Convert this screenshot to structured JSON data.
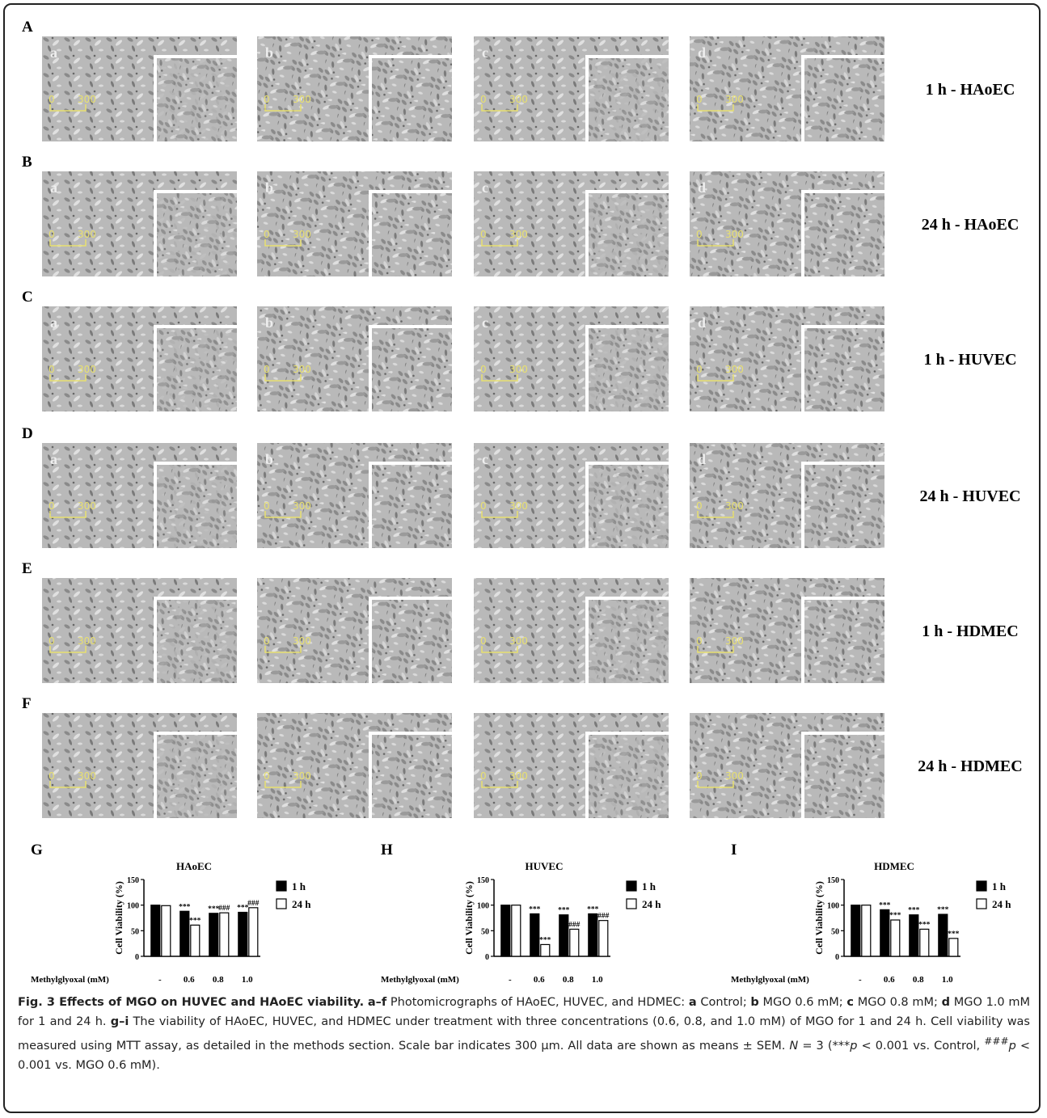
{
  "figure": {
    "rows": [
      {
        "label": "A",
        "panels": [
          "a",
          "b",
          "c",
          "d"
        ],
        "title": "1 h - HAoEC"
      },
      {
        "label": "B",
        "panels": [
          "a",
          "b",
          "c",
          "d"
        ],
        "title": "24 h - HAoEC"
      },
      {
        "label": "C",
        "panels": [
          "a",
          "b",
          "c",
          "d"
        ],
        "title": "1 h - HUVEC"
      },
      {
        "label": "D",
        "panels": [
          "a",
          "b",
          "c",
          "d"
        ],
        "title": "24 h - HUVEC"
      },
      {
        "label": "E",
        "title": "1 h - HDMEC"
      },
      {
        "label": "F",
        "title": "24 h - HDMEC"
      }
    ],
    "scale": [
      "0",
      "300"
    ]
  },
  "chart_data": [
    {
      "type": "bar",
      "panel": "G",
      "title": "HAoEC",
      "ylabel": "Cell Viability (%)",
      "xlabel": "Methylglyoxal (mM)",
      "categories": [
        "-",
        "0.6",
        "0.8",
        "1.0"
      ],
      "ylim": [
        0,
        150
      ],
      "yticks": [
        0,
        50,
        100,
        150
      ],
      "series": [
        {
          "name": "1 h",
          "color": "#000000",
          "values": [
            100,
            88,
            84,
            86
          ],
          "markers": [
            null,
            "***",
            "***",
            "***"
          ]
        },
        {
          "name": "24 h",
          "color": "#ffffff",
          "values": [
            99,
            61,
            85,
            95
          ],
          "markers": [
            null,
            "***",
            "###",
            "###"
          ]
        }
      ]
    },
    {
      "type": "bar",
      "panel": "H",
      "title": "HUVEC",
      "ylabel": "Cell Viability (%)",
      "xlabel": "Methylglyoxal (mM)",
      "categories": [
        "-",
        "0.6",
        "0.8",
        "1.0"
      ],
      "ylim": [
        0,
        150
      ],
      "yticks": [
        0,
        50,
        100,
        150
      ],
      "series": [
        {
          "name": "1 h",
          "color": "#000000",
          "values": [
            100,
            83,
            81,
            83
          ],
          "markers": [
            null,
            "***",
            "***",
            "***"
          ]
        },
        {
          "name": "24 h",
          "color": "#ffffff",
          "values": [
            100,
            23,
            53,
            70
          ],
          "markers": [
            null,
            "***",
            "###",
            "###"
          ]
        }
      ]
    },
    {
      "type": "bar",
      "panel": "I",
      "title": "HDMEC",
      "ylabel": "Cell Viability (%)",
      "xlabel": "Methylglyoxal (mM)",
      "categories": [
        "-",
        "0.6",
        "0.8",
        "1.0"
      ],
      "ylim": [
        0,
        150
      ],
      "yticks": [
        0,
        50,
        100,
        150
      ],
      "series": [
        {
          "name": "1 h",
          "color": "#000000",
          "values": [
            100,
            91,
            81,
            82
          ],
          "markers": [
            null,
            "***",
            "***",
            "***"
          ]
        },
        {
          "name": "24 h",
          "color": "#ffffff",
          "values": [
            100,
            71,
            53,
            35
          ],
          "markers": [
            null,
            "***",
            "***",
            "***"
          ]
        }
      ]
    }
  ],
  "caption": {
    "title": "Fig. 3 Effects of MGO on HUVEC and HAoEC viability.",
    "parts": [
      {
        "text": "a–f",
        "style": "b"
      },
      {
        "text": " Photomicrographs of HAoEC, HUVEC, and HDMEC: "
      },
      {
        "text": "a",
        "style": "b"
      },
      {
        "text": " Control; "
      },
      {
        "text": "b",
        "style": "b"
      },
      {
        "text": " MGO 0.6 mM; "
      },
      {
        "text": "c",
        "style": "b"
      },
      {
        "text": " MGO 0.8 mM; "
      },
      {
        "text": "d",
        "style": "b"
      },
      {
        "text": " MGO 1.0 mM for 1 and 24 h. "
      },
      {
        "text": "g–i",
        "style": "b"
      },
      {
        "text": " The viability of HAoEC, HUVEC, and HDMEC under treatment with three concentrations (0.6, 0.8, and 1.0 mM) of MGO for 1 and 24 h. Cell viability was measured using MTT assay, as detailed in the methods section. Scale bar indicates 300 µm. All data are shown as means ± SEM. "
      },
      {
        "text": "N",
        "style": "i"
      },
      {
        "text": " = 3 (***"
      },
      {
        "text": "p",
        "style": "i"
      },
      {
        "text": " < 0.001 vs. Control, "
      },
      {
        "text": "###",
        "style": "sup"
      },
      {
        "text": "p",
        "style": "i"
      },
      {
        "text": " < 0.001 vs. MGO 0.6 mM)."
      }
    ]
  }
}
